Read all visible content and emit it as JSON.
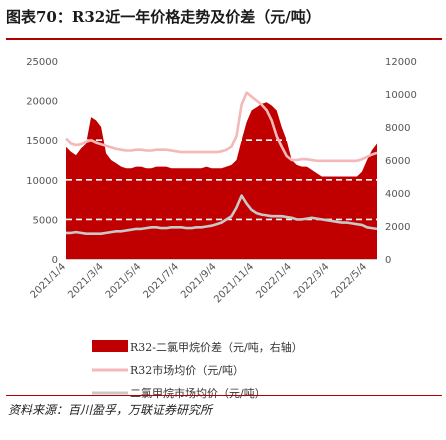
{
  "title": "图表70：R32近一年价格走势及价差（元/吨）",
  "source": "资料来源：百川盈孚，万联证券研究所",
  "chart_data": {
    "type": "line",
    "x_labels": [
      "2021/1/4",
      "2021/3/4",
      "2021/5/4",
      "2021/7/4",
      "2021/9/4",
      "2021/11/4",
      "2022/1/4",
      "2022/3/4",
      "2022/5/4"
    ],
    "left_axis": {
      "ylim": [
        0,
        25000
      ],
      "ticks": [
        "0",
        "5000",
        "10000",
        "15000",
        "20000",
        "25000"
      ]
    },
    "right_axis": {
      "ylim": [
        0,
        12000
      ],
      "ticks": [
        "0",
        "2000",
        "4000",
        "6000",
        "8000",
        "10000",
        "12000"
      ]
    },
    "series": [
      {
        "name": "R32-二氯甲烷价差（元/吨，右轴）",
        "type": "area",
        "axis": "right",
        "color": "#c00000",
        "values": [
          6800,
          6500,
          6300,
          6700,
          7000,
          8600,
          8400,
          8000,
          6400,
          6000,
          5800,
          5600,
          5500,
          5500,
          5600,
          5600,
          5500,
          5500,
          5600,
          5600,
          5600,
          5500,
          5500,
          5500,
          5500,
          5500,
          5500,
          5500,
          5600,
          5500,
          5500,
          5500,
          5600,
          5700,
          6000,
          7200,
          8300,
          9000,
          9200,
          9400,
          9500,
          9300,
          9000,
          8000,
          7200,
          6000,
          5700,
          5600,
          5600,
          5400,
          5200,
          5000,
          5000,
          5000,
          5000,
          5000,
          5000,
          5000,
          5000,
          5300,
          6000,
          6600,
          7000
        ]
      },
      {
        "name": "R32市场均价（元/吨）",
        "type": "line",
        "axis": "left",
        "color": "#f4b8b8",
        "values": [
          15200,
          14600,
          14400,
          14500,
          14800,
          15000,
          14700,
          14500,
          14300,
          14100,
          13900,
          13800,
          13700,
          13700,
          13800,
          13800,
          13700,
          13700,
          13800,
          13800,
          13800,
          13700,
          13600,
          13500,
          13500,
          13500,
          13500,
          13500,
          13500,
          13500,
          13500,
          13600,
          13800,
          14200,
          15500,
          19500,
          21000,
          20500,
          20000,
          19500,
          18800,
          17500,
          15500,
          14200,
          13000,
          12500,
          12500,
          12600,
          12600,
          12500,
          12400,
          12400,
          12400,
          12400,
          12400,
          12400,
          12400,
          12400,
          12400,
          12600,
          12900,
          13200,
          13400
        ]
      },
      {
        "name": "二氯甲烷市场均价（元/吨）",
        "type": "line",
        "axis": "left",
        "color": "#c8c8c8",
        "values": [
          3300,
          3300,
          3400,
          3300,
          3200,
          3200,
          3200,
          3200,
          3300,
          3400,
          3500,
          3500,
          3600,
          3700,
          3800,
          3800,
          3900,
          4000,
          4000,
          3900,
          3900,
          4000,
          4000,
          4000,
          3900,
          3900,
          4000,
          4000,
          4100,
          4200,
          4400,
          4600,
          5000,
          5400,
          6500,
          8000,
          7000,
          6200,
          5800,
          5600,
          5500,
          5400,
          5400,
          5400,
          5300,
          5200,
          5000,
          5000,
          5100,
          5200,
          5100,
          5000,
          4900,
          4800,
          4700,
          4600,
          4600,
          4500,
          4400,
          4300,
          4000,
          3900,
          3800
        ]
      }
    ]
  }
}
